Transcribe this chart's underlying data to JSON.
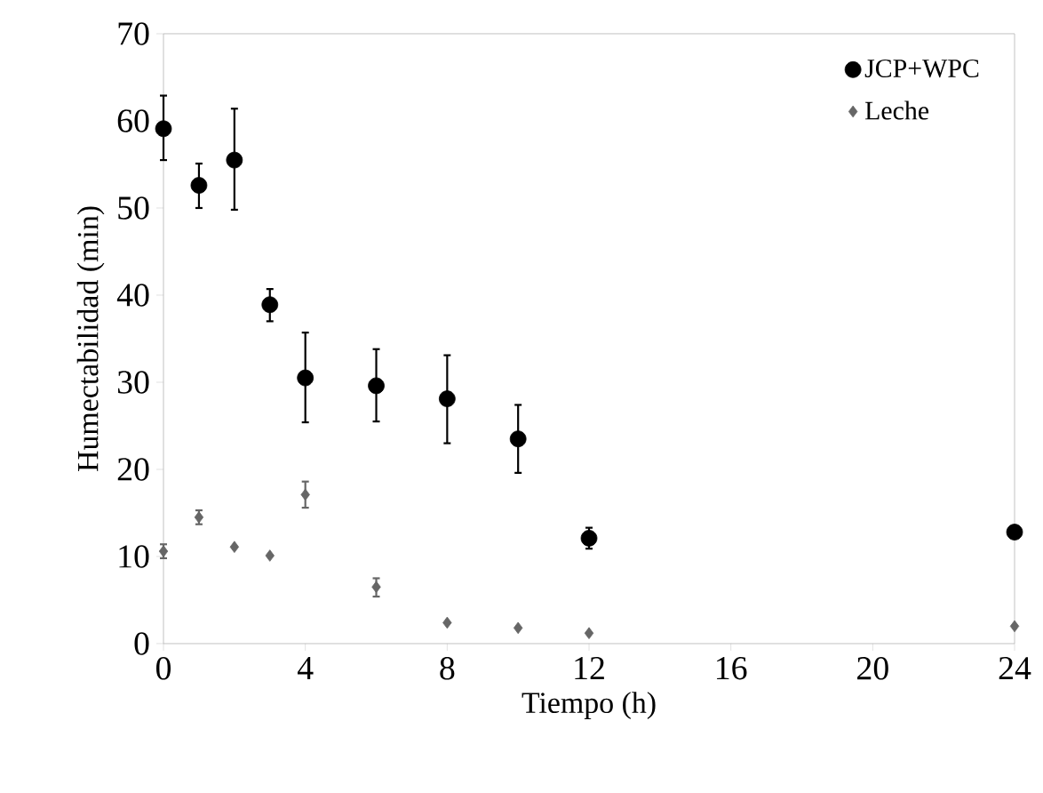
{
  "chart_data": {
    "type": "scatter",
    "xlabel": "Tiempo (h)",
    "ylabel": "Humectabilidad (min)",
    "x": [
      0,
      1,
      2,
      3,
      4,
      6,
      8,
      10,
      12,
      24
    ],
    "series": [
      {
        "name": "JCP+WPC",
        "color": "#000000",
        "marker": "circle",
        "values": [
          59.1,
          52.6,
          55.5,
          38.9,
          30.5,
          29.6,
          28.1,
          23.5,
          12.1,
          12.8
        ],
        "errors": [
          [
            55.5,
            62.9
          ],
          [
            50.0,
            55.1
          ],
          [
            49.8,
            61.4
          ],
          [
            37.0,
            40.7
          ],
          [
            25.4,
            35.7
          ],
          [
            25.5,
            33.8
          ],
          [
            23.0,
            33.1
          ],
          [
            19.6,
            27.4
          ],
          [
            10.9,
            13.3
          ],
          null
        ]
      },
      {
        "name": "Leche",
        "color": "#666666",
        "marker": "diamond",
        "values": [
          10.6,
          14.5,
          11.1,
          10.1,
          17.1,
          6.5,
          2.4,
          1.8,
          1.2,
          2.0
        ],
        "errors": [
          [
            9.8,
            11.4
          ],
          [
            13.7,
            15.3
          ],
          null,
          null,
          [
            15.6,
            18.6
          ],
          [
            5.4,
            7.5
          ],
          null,
          null,
          null,
          null
        ]
      }
    ],
    "xlim": [
      0,
      24
    ],
    "xticks": [
      0,
      4,
      8,
      12,
      16,
      20,
      24
    ],
    "ylim": [
      0,
      70
    ],
    "yticks": [
      0,
      10,
      20,
      30,
      40,
      50,
      60,
      70
    ],
    "grid": false,
    "legend": "top right"
  }
}
